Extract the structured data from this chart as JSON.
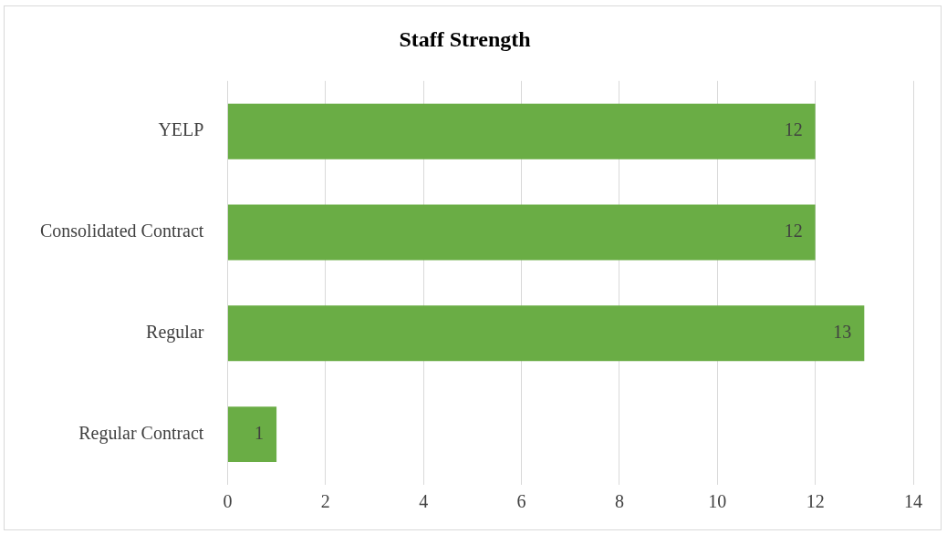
{
  "chart_data": {
    "type": "bar",
    "title": "Staff Strength",
    "orientation": "horizontal",
    "categories": [
      "YELP",
      "Consolidated Contract",
      "Regular",
      "Regular Contract"
    ],
    "values": [
      12,
      12,
      13,
      1
    ],
    "color": "#6aad45",
    "xlim": [
      0,
      14
    ],
    "xticks": [
      0,
      2,
      4,
      6,
      8,
      10,
      12,
      14
    ],
    "grid": "x",
    "data_labels": true,
    "legend": false
  }
}
